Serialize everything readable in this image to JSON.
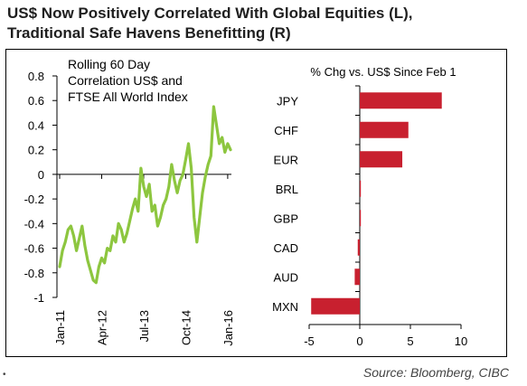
{
  "title": {
    "line1": "US$ Now Positively Correlated With Global Equities (L),",
    "line2": "Traditional Safe Havens Benefitting (R)"
  },
  "source": "Source: Bloomberg, CIBC",
  "colors": {
    "line": "#8dc63f",
    "bar": "#c8202f",
    "axis": "#000000"
  },
  "chart_data": [
    {
      "type": "line",
      "annotation": [
        "Rolling 60 Day",
        "Correlation US$ and",
        "FTSE All World Index"
      ],
      "ylim": [
        -1,
        0.8
      ],
      "yticks": [
        0.8,
        0.6,
        0.4,
        0.2,
        0,
        -0.2,
        -0.4,
        -0.6,
        -0.8,
        -1
      ],
      "ytick_labels": [
        "0.8",
        "0.6",
        "0.4",
        "0.2",
        "0",
        "-0.2",
        "-0.4",
        "-0.6",
        "-0.8",
        "-1"
      ],
      "xticks": [
        "2011-01",
        "2012-04",
        "2013-07",
        "2014-10",
        "2016-01"
      ],
      "xtick_labels": [
        "Jan-11",
        "Apr-12",
        "Jul-13",
        "Oct-14",
        "Jan-16"
      ],
      "series": [
        {
          "x": [
            "2011-01",
            "2011-02",
            "2011-03",
            "2011-04",
            "2011-05",
            "2011-06",
            "2011-07",
            "2011-08",
            "2011-09",
            "2011-10",
            "2011-11",
            "2011-12",
            "2012-01",
            "2012-02",
            "2012-03",
            "2012-04",
            "2012-05",
            "2012-06",
            "2012-07",
            "2012-08",
            "2012-09",
            "2012-10",
            "2012-11",
            "2012-12",
            "2013-01",
            "2013-02",
            "2013-03",
            "2013-04",
            "2013-05",
            "2013-06",
            "2013-07",
            "2013-08",
            "2013-09",
            "2013-10",
            "2013-11",
            "2013-12",
            "2014-01",
            "2014-02",
            "2014-03",
            "2014-04",
            "2014-05",
            "2014-06",
            "2014-07",
            "2014-08",
            "2014-09",
            "2014-10",
            "2014-11",
            "2014-12",
            "2015-01",
            "2015-02",
            "2015-03",
            "2015-04",
            "2015-05",
            "2015-06",
            "2015-07",
            "2015-08",
            "2015-09",
            "2015-10",
            "2015-11",
            "2015-12",
            "2016-01",
            "2016-02"
          ],
          "y": [
            -0.75,
            -0.62,
            -0.55,
            -0.45,
            -0.42,
            -0.5,
            -0.62,
            -0.52,
            -0.42,
            -0.58,
            -0.7,
            -0.78,
            -0.86,
            -0.88,
            -0.75,
            -0.68,
            -0.72,
            -0.6,
            -0.62,
            -0.5,
            -0.55,
            -0.4,
            -0.45,
            -0.55,
            -0.48,
            -0.38,
            -0.28,
            -0.2,
            -0.3,
            0.05,
            -0.1,
            -0.18,
            -0.08,
            -0.3,
            -0.25,
            -0.42,
            -0.35,
            -0.25,
            -0.2,
            -0.1,
            0.08,
            -0.05,
            -0.15,
            -0.05,
            0.0,
            0.12,
            0.25,
            0.05,
            -0.35,
            -0.55,
            -0.35,
            -0.15,
            -0.02,
            0.08,
            0.15,
            0.55,
            0.4,
            0.25,
            0.3,
            0.18,
            0.25,
            0.2
          ]
        }
      ]
    },
    {
      "type": "bar",
      "orientation": "horizontal",
      "title": "% Chg vs. US$ Since Feb 1",
      "categories": [
        "JPY",
        "CHF",
        "EUR",
        "BRL",
        "GBP",
        "CAD",
        "AUD",
        "MXN"
      ],
      "values": [
        8.1,
        4.8,
        4.2,
        0.1,
        0.1,
        -0.2,
        -0.5,
        -4.8
      ],
      "xlim": [
        -5,
        10
      ],
      "xticks": [
        -5,
        0,
        5,
        10
      ]
    }
  ]
}
